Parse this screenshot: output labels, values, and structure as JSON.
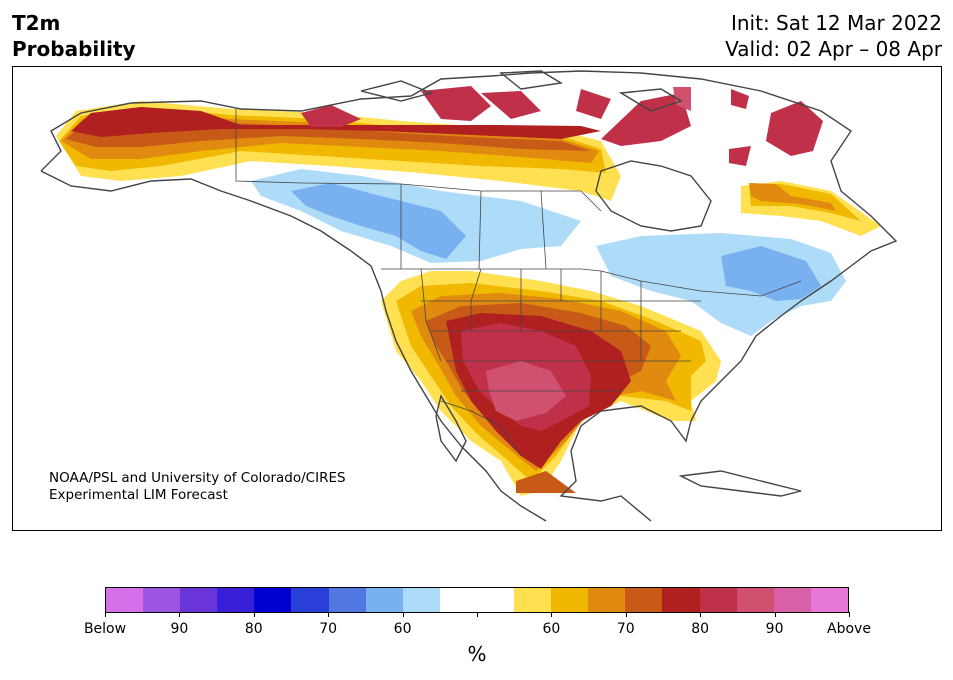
{
  "title": {
    "line1": "T2m",
    "line2": "Probability"
  },
  "init": "Init: Sat 12 Mar 2022",
  "valid": "Valid: 02 Apr – 08 Apr",
  "credit": {
    "line1": "NOAA/PSL and University of Colorado/CIRES",
    "line2": "Experimental LIM Forecast"
  },
  "colorbar": {
    "colors": [
      "#d670e8",
      "#9c55e0",
      "#6a35d8",
      "#3a1fd8",
      "#0000d0",
      "#2a3fd8",
      "#5078e0",
      "#78b0f0",
      "#aedcf8",
      "#ffffff",
      "#ffffff",
      "#ffe050",
      "#f0b800",
      "#e08a10",
      "#c85a18",
      "#b02020",
      "#c03048",
      "#d05070",
      "#d860a8",
      "#e878d8"
    ],
    "labels": [
      "Below",
      "90",
      "80",
      "70",
      "60",
      "",
      "60",
      "70",
      "80",
      "90",
      "Above"
    ],
    "unit": "%"
  },
  "colors": {
    "warm_light": "#ffe050",
    "warm": "#f0b800",
    "warm_orange": "#e08a10",
    "warm_dark_orange": "#c85a18",
    "warm_red": "#b02020",
    "warm_crimson": "#c03048",
    "warm_pink": "#d05070",
    "cool_light": "#aedcf8",
    "cool": "#78b0f0"
  }
}
